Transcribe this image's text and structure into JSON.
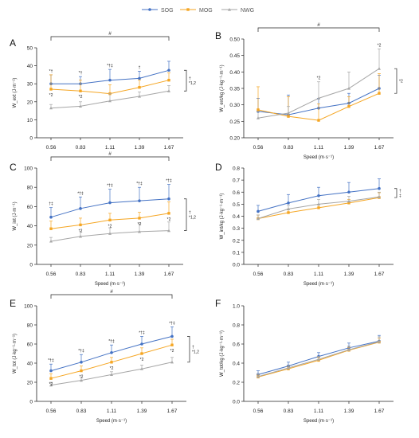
{
  "legend": {
    "items": [
      {
        "label": "SOG",
        "color": "#4472C4",
        "marker": "circle"
      },
      {
        "label": "MOG",
        "color": "#F5A623",
        "marker": "square"
      },
      {
        "label": "NWG",
        "color": "#A6A6A6",
        "marker": "triangle"
      }
    ],
    "placement": "top-center"
  },
  "chart_data": [
    {
      "panel": "A",
      "type": "line",
      "ylabel": "W_ext (J·m⁻¹)",
      "xlabel": "",
      "x": [
        "0.56",
        "0.83",
        "1.11",
        "1.39",
        "1.67"
      ],
      "ylim": [
        0,
        50
      ],
      "yticks": [
        0,
        10,
        20,
        30,
        40,
        50
      ],
      "series": [
        {
          "name": "SOG",
          "values": [
            30,
            30,
            32,
            33,
            37.5
          ],
          "err": [
            5,
            4,
            6,
            4,
            5
          ]
        },
        {
          "name": "MOG",
          "values": [
            27,
            26,
            24.5,
            28,
            32
          ],
          "err": [
            8,
            6,
            5,
            4,
            4
          ]
        },
        {
          "name": "NWG",
          "values": [
            16.5,
            17.5,
            20.5,
            23,
            26
          ],
          "err": [
            2,
            2.5,
            4,
            2.5,
            3
          ]
        }
      ],
      "annotations": {
        "bracket": "#",
        "sig_sog": [
          "*†",
          "*†",
          "*†‡",
          "†",
          ""
        ],
        "sig_mog": [
          "*2",
          "*2",
          "",
          "",
          ""
        ],
        "group": "†\n*1,2"
      }
    },
    {
      "panel": "B",
      "type": "line",
      "ylabel": "W_ext/kg (J·kg⁻¹·m⁻¹)",
      "xlabel": "Speed (m·s⁻¹)",
      "x": [
        "0.56",
        "0.83",
        "1.11",
        "1.39",
        "1.67"
      ],
      "ylim": [
        0.2,
        0.5
      ],
      "yticks": [
        0.2,
        0.25,
        0.3,
        0.35,
        0.4,
        0.45,
        0.5
      ],
      "series": [
        {
          "name": "SOG",
          "values": [
            0.28,
            0.27,
            0.29,
            0.305,
            0.35
          ],
          "err": [
            0.04,
            0.06,
            0.03,
            0.03,
            0.04
          ]
        },
        {
          "name": "MOG",
          "values": [
            0.285,
            0.265,
            0.253,
            0.295,
            0.335
          ],
          "err": [
            0.07,
            0.06,
            0.05,
            0.03,
            0.06
          ]
        },
        {
          "name": "NWG",
          "values": [
            0.26,
            0.275,
            0.32,
            0.35,
            0.41
          ],
          "err": [
            0.02,
            0.02,
            0.05,
            0.05,
            0.06
          ]
        }
      ],
      "annotations": {
        "bracket": "#",
        "sig_nwg": [
          "",
          "",
          "*2",
          "",
          "*2"
        ],
        "group": "*2"
      }
    },
    {
      "panel": "C",
      "type": "line",
      "ylabel": "W_int (J·m⁻¹)",
      "xlabel": "Speed (m·s⁻¹)",
      "x": [
        "0.56",
        "0.83",
        "1.11",
        "1.39",
        "1.67"
      ],
      "ylim": [
        0,
        100
      ],
      "yticks": [
        0,
        20,
        40,
        60,
        80,
        100
      ],
      "series": [
        {
          "name": "SOG",
          "values": [
            49,
            58,
            64,
            66,
            68
          ],
          "err": [
            10,
            12,
            14,
            14,
            15
          ]
        },
        {
          "name": "MOG",
          "values": [
            37,
            41,
            46,
            48,
            53
          ],
          "err": [
            8,
            7,
            7,
            6,
            12
          ]
        },
        {
          "name": "NWG",
          "values": [
            24,
            29,
            32,
            34,
            35
          ],
          "err": [
            4,
            5,
            6,
            8,
            9
          ]
        }
      ],
      "annotations": {
        "bracket": "#",
        "sig_sog": [
          "†‡",
          "*†‡",
          "*†‡",
          "*†‡",
          "*†‡"
        ],
        "sig_mog": [
          "",
          "*2",
          "*2",
          "*2",
          "*2"
        ],
        "group": "†\n*1,2"
      }
    },
    {
      "panel": "D",
      "type": "line",
      "ylabel": "W_int/kg (J·kg⁻¹·m⁻¹)",
      "xlabel": "Speed (m·s⁻¹)",
      "x": [
        "0.56",
        "0.83",
        "1.11",
        "1.39",
        "1.67"
      ],
      "ylim": [
        0,
        0.8
      ],
      "yticks": [
        0,
        0.1,
        0.2,
        0.3,
        0.4,
        0.5,
        0.6,
        0.7,
        0.8
      ],
      "series": [
        {
          "name": "SOG",
          "values": [
            0.44,
            0.51,
            0.57,
            0.6,
            0.63
          ],
          "err": [
            0.05,
            0.07,
            0.07,
            0.08,
            0.08
          ]
        },
        {
          "name": "MOG",
          "values": [
            0.38,
            0.43,
            0.47,
            0.51,
            0.555
          ],
          "err": [
            0.03,
            0.03,
            0.03,
            0.03,
            0.04
          ]
        },
        {
          "name": "NWG",
          "values": [
            0.38,
            0.46,
            0.5,
            0.525,
            0.56
          ],
          "err": [
            0.03,
            0.03,
            0.04,
            0.04,
            0.04
          ]
        }
      ],
      "annotations": {
        "group": "†\n‡"
      }
    },
    {
      "panel": "E",
      "type": "line",
      "ylabel": "W_tot (J·kg⁻¹·m⁻¹)",
      "xlabel": "Speed (m·s⁻¹)",
      "x": [
        "0.56",
        "0.83",
        "1.11",
        "1.39",
        "1.67"
      ],
      "ylim": [
        0,
        100
      ],
      "yticks": [
        0,
        20,
        40,
        60,
        80,
        100
      ],
      "series": [
        {
          "name": "SOG",
          "values": [
            32,
            41,
            51,
            60,
            68
          ],
          "err": [
            7,
            8,
            8,
            8,
            10
          ]
        },
        {
          "name": "MOG",
          "values": [
            24,
            32,
            41,
            50,
            59
          ],
          "err": [
            5,
            5,
            5,
            6,
            6
          ]
        },
        {
          "name": "NWG",
          "values": [
            17,
            22,
            28,
            34,
            41
          ],
          "err": [
            3,
            3,
            3,
            4,
            5
          ]
        }
      ],
      "annotations": {
        "bracket": "#",
        "sig_sog": [
          "*†‡",
          "*†‡",
          "*†‡",
          "*†‡",
          "*†‡"
        ],
        "sig_mog": [
          "*2",
          "*2",
          "*2",
          "*2",
          "*2"
        ],
        "group": "†\n*1,2"
      }
    },
    {
      "panel": "F",
      "type": "line",
      "ylabel": "W_tot/kg (J·kg⁻¹·m⁻¹)",
      "xlabel": "Speed (m·s⁻¹)",
      "x": [
        "0.56",
        "0.83",
        "1.11",
        "1.39",
        "1.67"
      ],
      "ylim": [
        0,
        1.0
      ],
      "yticks": [
        0,
        0.2,
        0.4,
        0.6,
        0.8,
        1.0
      ],
      "series": [
        {
          "name": "SOG",
          "values": [
            0.28,
            0.37,
            0.47,
            0.56,
            0.63
          ],
          "err": [
            0.04,
            0.04,
            0.04,
            0.05,
            0.06
          ]
        },
        {
          "name": "MOG",
          "values": [
            0.255,
            0.34,
            0.43,
            0.535,
            0.62
          ],
          "err": [
            0.02,
            0.02,
            0.03,
            0.03,
            0.04
          ]
        },
        {
          "name": "NWG",
          "values": [
            0.26,
            0.35,
            0.44,
            0.54,
            0.625
          ],
          "err": [
            0.03,
            0.03,
            0.03,
            0.04,
            0.05
          ]
        }
      ],
      "annotations": {}
    }
  ]
}
